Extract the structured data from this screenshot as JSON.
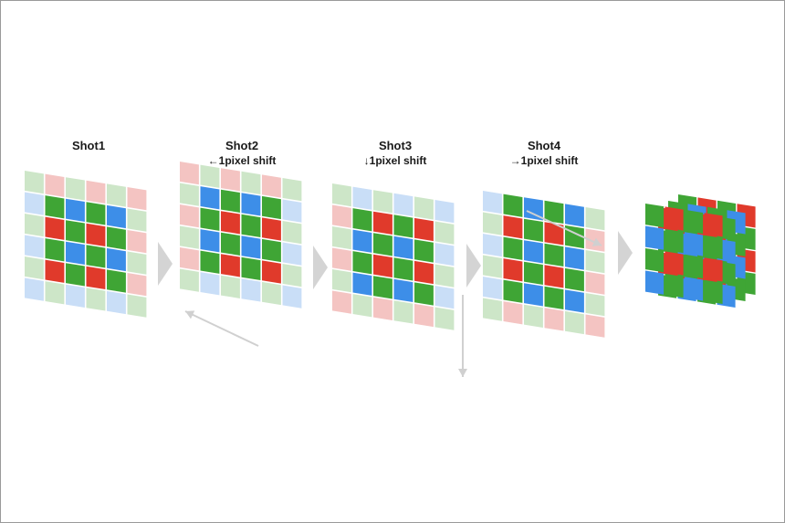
{
  "shots": [
    {
      "title": "Shot1",
      "subtitle": ""
    },
    {
      "title": "Shot2",
      "subtitle": "←1pixel shift"
    },
    {
      "title": "Shot3",
      "subtitle": "↓1pixel shift"
    },
    {
      "title": "Shot4",
      "subtitle": "→1pixel shift"
    }
  ],
  "colors": {
    "red": "#e03a2b",
    "green": "#3fa535",
    "blue": "#3d8ee8",
    "red_faded": "#f4c4c2",
    "green_faded": "#cde6c8",
    "blue_faded": "#c9def7",
    "chevron": "#d4d4d4",
    "shift_arrow": "#d0d0d0"
  },
  "icons": {
    "step_arrow": "chevron-right-icon",
    "shift_left": "arrow-left-icon",
    "shift_down": "arrow-down-icon",
    "shift_right": "arrow-right-icon"
  }
}
